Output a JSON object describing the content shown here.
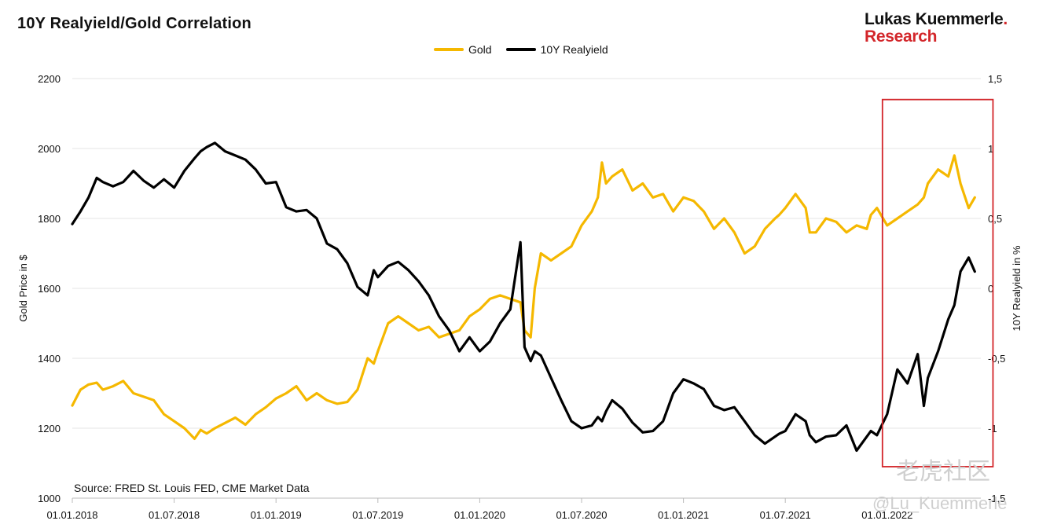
{
  "header": {
    "title": "10Y Realyield/Gold Correlation",
    "brand_line1": "Lukas Kuemmerle",
    "brand_dot": ".",
    "brand_line2": "Research"
  },
  "source_text": "Source: FRED St. Louis FED, CME Market Data",
  "watermark": {
    "line1": "老虎社区",
    "line2": "@Lu_Kuemmerle"
  },
  "colors": {
    "gold": "#f5b800",
    "realyield": "#000000",
    "highlight_box": "#d3262a",
    "grid": "#e6e6e6"
  },
  "chart_data": {
    "type": "line",
    "title": "10Y Realyield/Gold Correlation",
    "ylabel_left": "Gold Price in $",
    "ylabel_right": "10Y Realyield in %",
    "ylim_left": [
      1000,
      2200
    ],
    "ylim_right": [
      -1.5,
      1.5
    ],
    "yticks_left": [
      "1000",
      "1200",
      "1400",
      "1600",
      "1800",
      "2000",
      "2200"
    ],
    "yticks_right": [
      "-1,5",
      "-1",
      "-0,5",
      "0",
      "0,5",
      "1",
      "1,5"
    ],
    "xticks": [
      "01.01.2018",
      "01.07.2018",
      "01.01.2019",
      "01.07.2019",
      "01.01.2020",
      "01.07.2020",
      "01.01.2021",
      "01.07.2021",
      "01.01.2022"
    ],
    "xrange_years": [
      2018.0,
      2022.45
    ],
    "grid": "horizontal",
    "legend_position": "top-center",
    "highlight_range": {
      "x_start": 2022.0,
      "x_end": 2022.45,
      "y_top": 2140,
      "y_bottom": 1090
    },
    "series": [
      {
        "name": "Gold",
        "axis": "left",
        "x": [
          2018.0,
          2018.04,
          2018.08,
          2018.12,
          2018.15,
          2018.2,
          2018.25,
          2018.3,
          2018.35,
          2018.4,
          2018.45,
          2018.5,
          2018.55,
          2018.6,
          2018.63,
          2018.66,
          2018.7,
          2018.75,
          2018.8,
          2018.85,
          2018.9,
          2018.95,
          2019.0,
          2019.05,
          2019.1,
          2019.15,
          2019.2,
          2019.25,
          2019.3,
          2019.35,
          2019.4,
          2019.45,
          2019.48,
          2019.5,
          2019.55,
          2019.6,
          2019.65,
          2019.7,
          2019.75,
          2019.8,
          2019.85,
          2019.9,
          2019.95,
          2020.0,
          2020.05,
          2020.1,
          2020.15,
          2020.2,
          2020.22,
          2020.25,
          2020.27,
          2020.3,
          2020.35,
          2020.4,
          2020.45,
          2020.5,
          2020.55,
          2020.58,
          2020.6,
          2020.62,
          2020.65,
          2020.7,
          2020.75,
          2020.8,
          2020.85,
          2020.9,
          2020.95,
          2021.0,
          2021.05,
          2021.1,
          2021.15,
          2021.2,
          2021.25,
          2021.3,
          2021.35,
          2021.4,
          2021.45,
          2021.47,
          2021.5,
          2021.55,
          2021.6,
          2021.62,
          2021.65,
          2021.7,
          2021.75,
          2021.8,
          2021.85,
          2021.9,
          2021.92,
          2021.95,
          2022.0,
          2022.05,
          2022.1,
          2022.15,
          2022.18,
          2022.2,
          2022.25,
          2022.3,
          2022.33,
          2022.36,
          2022.4,
          2022.43
        ],
        "values": [
          1265,
          1310,
          1325,
          1330,
          1310,
          1320,
          1335,
          1300,
          1290,
          1280,
          1240,
          1220,
          1200,
          1170,
          1195,
          1185,
          1200,
          1215,
          1230,
          1210,
          1240,
          1260,
          1285,
          1300,
          1320,
          1280,
          1300,
          1280,
          1270,
          1275,
          1310,
          1400,
          1385,
          1420,
          1500,
          1520,
          1500,
          1480,
          1490,
          1460,
          1470,
          1480,
          1520,
          1540,
          1570,
          1580,
          1570,
          1560,
          1480,
          1460,
          1600,
          1700,
          1680,
          1700,
          1720,
          1780,
          1820,
          1860,
          1960,
          1900,
          1920,
          1940,
          1880,
          1900,
          1860,
          1870,
          1820,
          1860,
          1850,
          1820,
          1770,
          1800,
          1760,
          1700,
          1720,
          1770,
          1800,
          1810,
          1830,
          1870,
          1830,
          1760,
          1760,
          1800,
          1790,
          1760,
          1780,
          1770,
          1810,
          1830,
          1780,
          1800,
          1820,
          1840,
          1860,
          1900,
          1940,
          1920,
          1980,
          1900,
          1830,
          1860
        ]
      },
      {
        "name": "10Y Realyield",
        "axis": "right",
        "x": [
          2018.0,
          2018.04,
          2018.08,
          2018.12,
          2018.15,
          2018.2,
          2018.25,
          2018.3,
          2018.35,
          2018.4,
          2018.45,
          2018.5,
          2018.55,
          2018.6,
          2018.63,
          2018.66,
          2018.7,
          2018.75,
          2018.8,
          2018.85,
          2018.9,
          2018.95,
          2019.0,
          2019.05,
          2019.1,
          2019.15,
          2019.2,
          2019.25,
          2019.3,
          2019.35,
          2019.4,
          2019.45,
          2019.48,
          2019.5,
          2019.55,
          2019.6,
          2019.65,
          2019.7,
          2019.75,
          2019.8,
          2019.85,
          2019.9,
          2019.95,
          2020.0,
          2020.05,
          2020.1,
          2020.15,
          2020.2,
          2020.22,
          2020.25,
          2020.27,
          2020.3,
          2020.35,
          2020.4,
          2020.45,
          2020.5,
          2020.55,
          2020.58,
          2020.6,
          2020.62,
          2020.65,
          2020.7,
          2020.75,
          2020.8,
          2020.85,
          2020.9,
          2020.95,
          2021.0,
          2021.05,
          2021.1,
          2021.15,
          2021.2,
          2021.25,
          2021.3,
          2021.35,
          2021.4,
          2021.45,
          2021.47,
          2021.5,
          2021.55,
          2021.6,
          2021.62,
          2021.65,
          2021.7,
          2021.75,
          2021.8,
          2021.85,
          2021.9,
          2021.92,
          2021.95,
          2022.0,
          2022.05,
          2022.1,
          2022.15,
          2022.18,
          2022.2,
          2022.25,
          2022.3,
          2022.33,
          2022.36,
          2022.4,
          2022.43
        ],
        "values": [
          0.46,
          0.55,
          0.65,
          0.79,
          0.76,
          0.73,
          0.76,
          0.84,
          0.77,
          0.72,
          0.78,
          0.72,
          0.84,
          0.93,
          0.98,
          1.01,
          1.04,
          0.98,
          0.95,
          0.92,
          0.85,
          0.75,
          0.76,
          0.58,
          0.55,
          0.56,
          0.5,
          0.32,
          0.28,
          0.18,
          0.01,
          -0.05,
          0.13,
          0.08,
          0.16,
          0.19,
          0.13,
          0.05,
          -0.05,
          -0.2,
          -0.3,
          -0.45,
          -0.35,
          -0.45,
          -0.38,
          -0.25,
          -0.15,
          0.33,
          -0.42,
          -0.52,
          -0.45,
          -0.48,
          -0.64,
          -0.8,
          -0.95,
          -1.0,
          -0.98,
          -0.92,
          -0.95,
          -0.88,
          -0.8,
          -0.86,
          -0.96,
          -1.03,
          -1.02,
          -0.95,
          -0.75,
          -0.65,
          -0.68,
          -0.72,
          -0.84,
          -0.87,
          -0.85,
          -0.95,
          -1.05,
          -1.11,
          -1.06,
          -1.04,
          -1.02,
          -0.9,
          -0.95,
          -1.05,
          -1.1,
          -1.06,
          -1.05,
          -0.98,
          -1.16,
          -1.06,
          -1.02,
          -1.05,
          -0.9,
          -0.58,
          -0.68,
          -0.47,
          -0.84,
          -0.64,
          -0.45,
          -0.22,
          -0.12,
          0.12,
          0.22,
          0.12
        ]
      }
    ]
  }
}
